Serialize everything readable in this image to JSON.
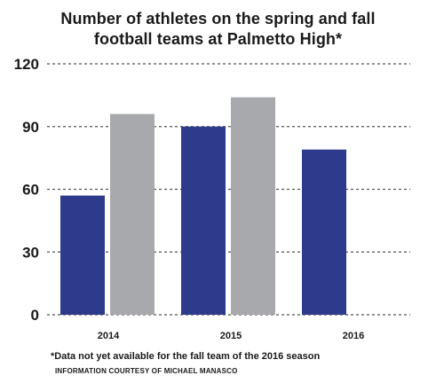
{
  "chart_data": {
    "type": "bar",
    "title": [
      "Number of athletes on the spring and fall",
      "football teams at Palmetto High*"
    ],
    "categories": [
      "2014",
      "2015",
      "2016"
    ],
    "series": [
      {
        "color": "#2e3a8c",
        "values": [
          57,
          90,
          79
        ]
      },
      {
        "color": "#a7a9ac",
        "values": [
          96,
          104,
          null
        ]
      }
    ],
    "ylim": [
      0,
      120
    ],
    "yticks": [
      0,
      30,
      60,
      90,
      120
    ],
    "grid": true,
    "footnote": "*Data not yet available for the fall team of the 2016 season",
    "credit": "INFORMATION COURTESY OF MICHAEL MANASCO"
  }
}
